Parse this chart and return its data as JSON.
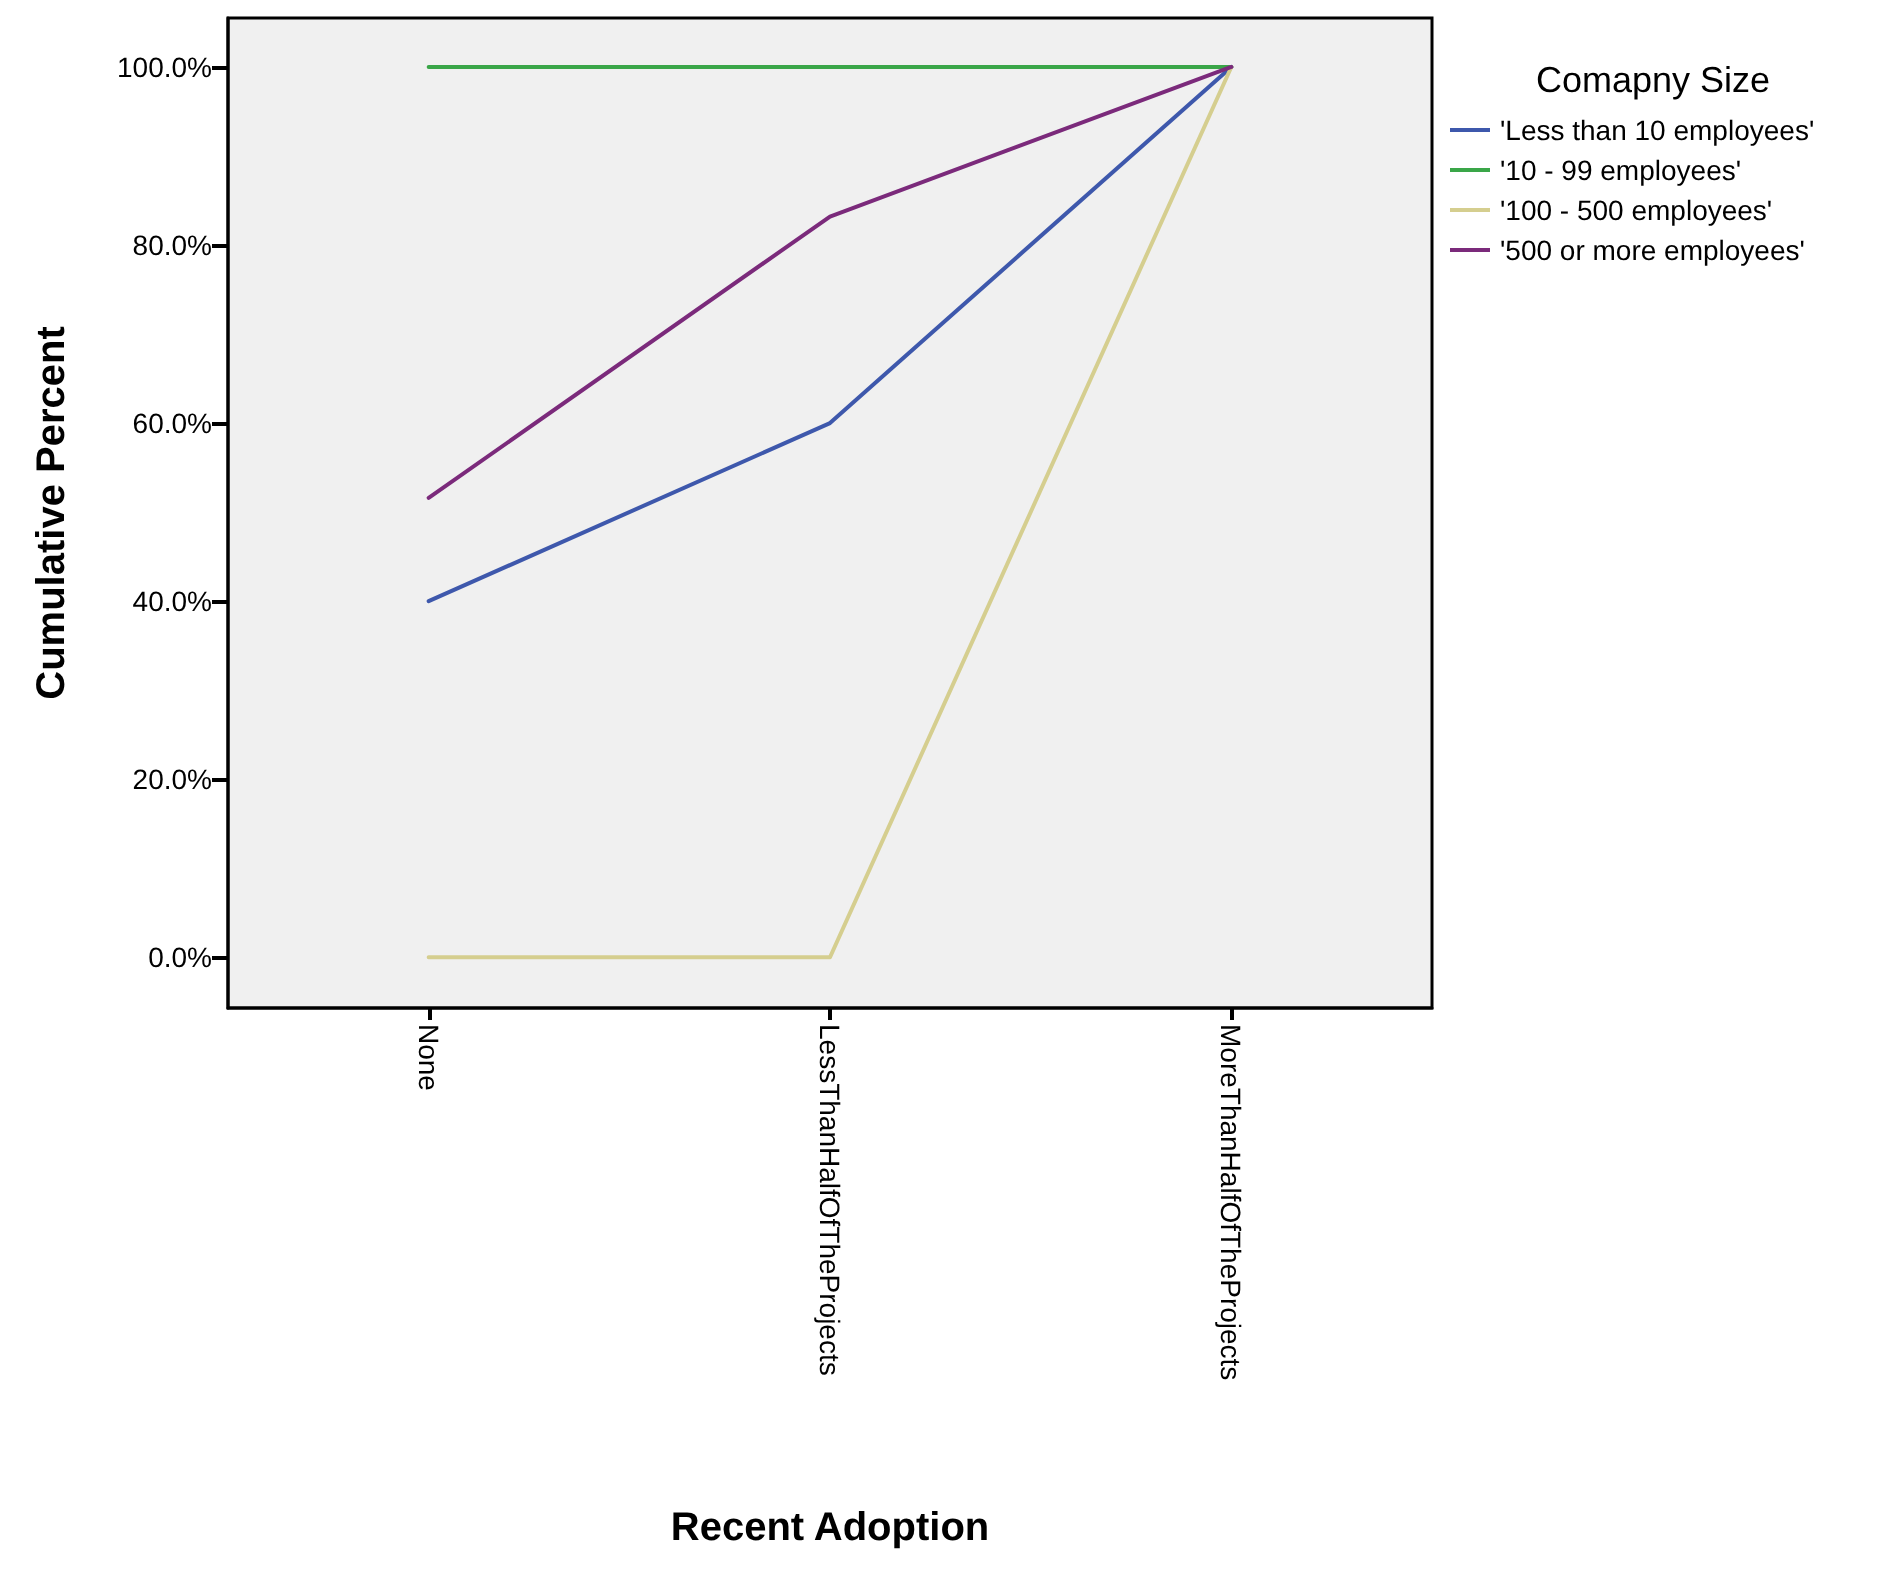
{
  "chart_data": {
    "type": "line",
    "xlabel": "Recent Adoption",
    "ylabel": "Cumulative Percent",
    "legend_title": "Comapny Size",
    "categories": [
      "None",
      "LessThanHalfOfTheProjects",
      "MoreThanHalfOfTheProjects"
    ],
    "series": [
      {
        "name": "'Less than 10 employees'",
        "color": "#3e58ac",
        "values": [
          40,
          60,
          100
        ]
      },
      {
        "name": "'10 - 99 employees'",
        "color": "#3aa648",
        "values": [
          100,
          100,
          100
        ]
      },
      {
        "name": "'100 - 500 employees'",
        "color": "#d5ce8f",
        "values": [
          0,
          0,
          100
        ]
      },
      {
        "name": "'500 or more employees'",
        "color": "#7b2a7b",
        "values": [
          51.6,
          83.2,
          100
        ]
      }
    ],
    "ylim": [
      -5.7,
      105.5
    ],
    "yticks": [
      {
        "value": 0,
        "label": "0.0%"
      },
      {
        "value": 20,
        "label": "20.0%"
      },
      {
        "value": 40,
        "label": "40.0%"
      },
      {
        "value": 60,
        "label": "60.0%"
      },
      {
        "value": 80,
        "label": "80.0%"
      },
      {
        "value": 100,
        "label": "100.0%"
      }
    ],
    "grid": false,
    "legend": "top right",
    "marker": "none",
    "line_style": "solid"
  }
}
